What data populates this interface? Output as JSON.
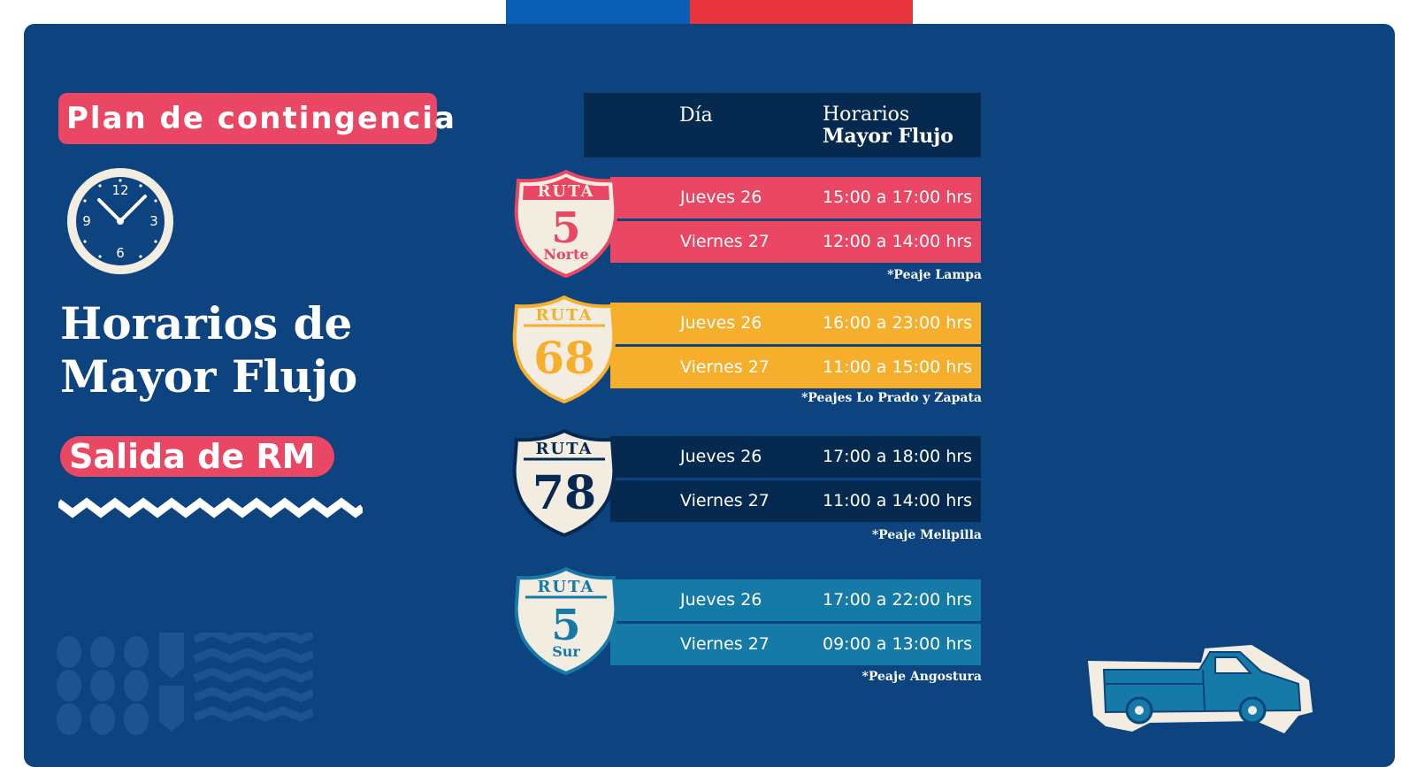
{
  "header": {
    "plan_label": "Plan de contingencia",
    "title_line1": "Horarios de",
    "title_line2": "Mayor Flujo",
    "subtitle": "Salida de RM"
  },
  "table": {
    "col_day": "Día",
    "col_hours_line1": "Horarios",
    "col_hours_line2": "Mayor Flujo",
    "routes": [
      {
        "shield_word": "RUTA",
        "number": "5",
        "suffix": "Norte",
        "color": "#e94763",
        "rows": [
          {
            "day": "Jueves  26",
            "hours": "15:00 a 17:00 hrs"
          },
          {
            "day": "Viernes 27",
            "hours": "12:00 a 14:00 hrs"
          }
        ],
        "note": "*Peaje Lampa"
      },
      {
        "shield_word": "RUTA",
        "number": "68",
        "suffix": "",
        "color": "#f6ae2d",
        "rows": [
          {
            "day": "Jueves  26",
            "hours": "16:00 a 23:00 hrs"
          },
          {
            "day": "Viernes 27",
            "hours": "11:00 a 15:00 hrs"
          }
        ],
        "note": "*Peajes Lo Prado y Zapata"
      },
      {
        "shield_word": "RUTA",
        "number": "78",
        "suffix": "",
        "color": "#062a4f",
        "rows": [
          {
            "day": "Jueves  26",
            "hours": "17:00 a 18:00 hrs"
          },
          {
            "day": "Viernes 27",
            "hours": "11:00 a 14:00 hrs"
          }
        ],
        "note": "*Peaje Melipilla"
      },
      {
        "shield_word": "RUTA",
        "number": "5",
        "suffix": "Sur",
        "color": "#167aa6",
        "rows": [
          {
            "day": "Jueves  26",
            "hours": "17:00 a 22:00 hrs"
          },
          {
            "day": "Viernes 27",
            "hours": "09:00 a 13:00 hrs"
          }
        ],
        "note": "*Peaje Angostura"
      }
    ]
  },
  "clock_numbers": {
    "n12": "12",
    "n3": "3",
    "n6": "6",
    "n9": "9"
  },
  "colors": {
    "panel": "#0d437e",
    "accent_pink": "#e94763",
    "flag_blue": "#0a5fb4",
    "flag_red": "#e8343c",
    "cream": "#f3ece0"
  }
}
